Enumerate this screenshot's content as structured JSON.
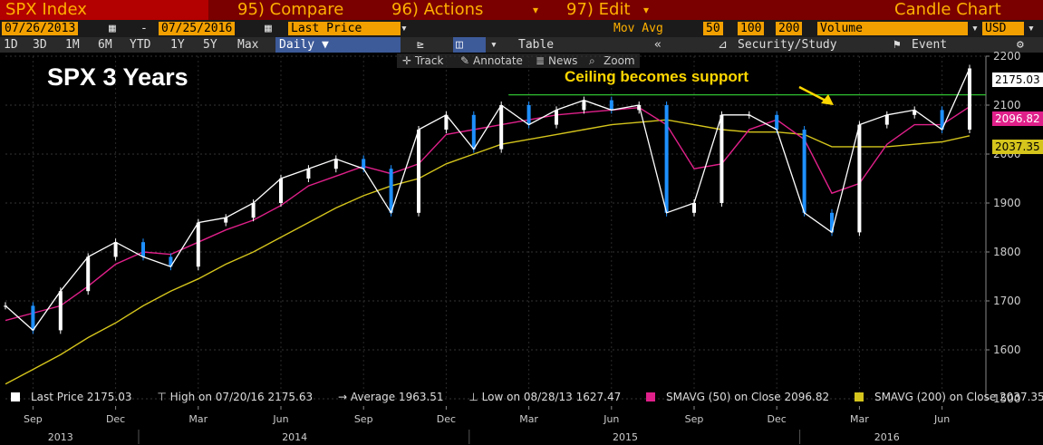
{
  "header": {
    "security": "SPX Index",
    "compare": "95) Compare",
    "actions": "96) Actions",
    "edit": "97) Edit",
    "chart_type": "Candle Chart",
    "start_date": "07/26/2013",
    "dash": "-",
    "end_date": "07/25/2016",
    "price_field": "Last Price",
    "mov_avg_label": "Mov Avg",
    "ma1": "50",
    "ma2": "100",
    "ma3": "200",
    "volume": "Volume",
    "currency": "USD"
  },
  "toolbar": {
    "periods": [
      "1D",
      "3D",
      "1M",
      "6M",
      "YTD",
      "1Y",
      "5Y",
      "Max"
    ],
    "frequency": "Daily",
    "table": "Table",
    "security_study": "Security/Study",
    "event": "Event"
  },
  "subtoolbar": {
    "track": "Track",
    "annotate": "Annotate",
    "news": "News",
    "zoom": "Zoom"
  },
  "chart_title": "SPX 3 Years",
  "annotation": "Ceiling becomes support",
  "price_labels": {
    "last": "2175.03",
    "sma50": "2096.82",
    "sma200": "2037.35"
  },
  "legend": {
    "last": "Last Price 2175.03",
    "high": "High on 07/20/16 2175.63",
    "average": "Average 1963.51",
    "low": "Low on 08/28/13 1627.47",
    "sma50": "SMAVG (50) on Close 2096.82",
    "sma200": "SMAVG (200) on Close 2037.35"
  },
  "colors": {
    "price": "#ffffff",
    "price_down": "#1e90ff",
    "sma50": "#e0208a",
    "sma200": "#d4c41c",
    "resistance": "#2fbf2f",
    "header_bg": "#7a0000",
    "header_text": "#ffb000"
  },
  "icons": {
    "calendar": "calendar-icon",
    "dropdown": "chevron-down-icon",
    "collapse": "double-chevron-left-icon",
    "gear": "gear-icon",
    "flag": "flag-icon"
  },
  "chart_data": {
    "type": "line",
    "title": "SPX 3 Years",
    "ylim": [
      1500,
      2200
    ],
    "y_ticks": [
      1500,
      1600,
      1700,
      1800,
      1900,
      2000,
      2100,
      2200
    ],
    "x_tick_labels": [
      "Sep",
      "Dec",
      "Mar",
      "Jun",
      "Sep",
      "Dec",
      "Mar",
      "Jun",
      "Sep",
      "Dec",
      "Mar",
      "Jun"
    ],
    "year_labels": [
      "2013",
      "2014",
      "2015",
      "2016"
    ],
    "x_dates": [
      "2013-08",
      "2013-09",
      "2013-10",
      "2013-11",
      "2013-12",
      "2014-01",
      "2014-02",
      "2014-03",
      "2014-04",
      "2014-05",
      "2014-06",
      "2014-07",
      "2014-08",
      "2014-09",
      "2014-10",
      "2014-11",
      "2014-12",
      "2015-01",
      "2015-02",
      "2015-03",
      "2015-04",
      "2015-05",
      "2015-06",
      "2015-07",
      "2015-08",
      "2015-09",
      "2015-10",
      "2015-11",
      "2015-12",
      "2016-01",
      "2016-02",
      "2016-03",
      "2016-04",
      "2016-05",
      "2016-06",
      "2016-07"
    ],
    "series": [
      {
        "name": "Last Price",
        "values": [
          1690,
          1640,
          1720,
          1790,
          1820,
          1790,
          1770,
          1860,
          1870,
          1900,
          1950,
          1970,
          1990,
          1970,
          1880,
          2050,
          2080,
          2010,
          2100,
          2060,
          2090,
          2110,
          2090,
          2100,
          1880,
          1900,
          2080,
          2080,
          2050,
          1880,
          1840,
          2060,
          2080,
          2090,
          2050,
          2175
        ]
      },
      {
        "name": "SMAVG (50) on Close",
        "values": [
          1660,
          1675,
          1690,
          1730,
          1775,
          1800,
          1795,
          1820,
          1845,
          1865,
          1895,
          1935,
          1955,
          1975,
          1960,
          1980,
          2040,
          2050,
          2060,
          2070,
          2080,
          2085,
          2090,
          2095,
          2060,
          1970,
          1980,
          2050,
          2070,
          2030,
          1920,
          1940,
          2020,
          2060,
          2060,
          2096.82
        ]
      },
      {
        "name": "SMAVG (200) on Close",
        "values": [
          1530,
          1560,
          1590,
          1625,
          1655,
          1690,
          1720,
          1745,
          1775,
          1800,
          1830,
          1860,
          1890,
          1915,
          1935,
          1950,
          1980,
          2000,
          2020,
          2030,
          2040,
          2050,
          2060,
          2065,
          2070,
          2060,
          2050,
          2045,
          2045,
          2040,
          2015,
          2015,
          2015,
          2020,
          2025,
          2037.35
        ]
      },
      {
        "name": "Resistance",
        "values": [
          2121,
          2121
        ]
      }
    ]
  }
}
